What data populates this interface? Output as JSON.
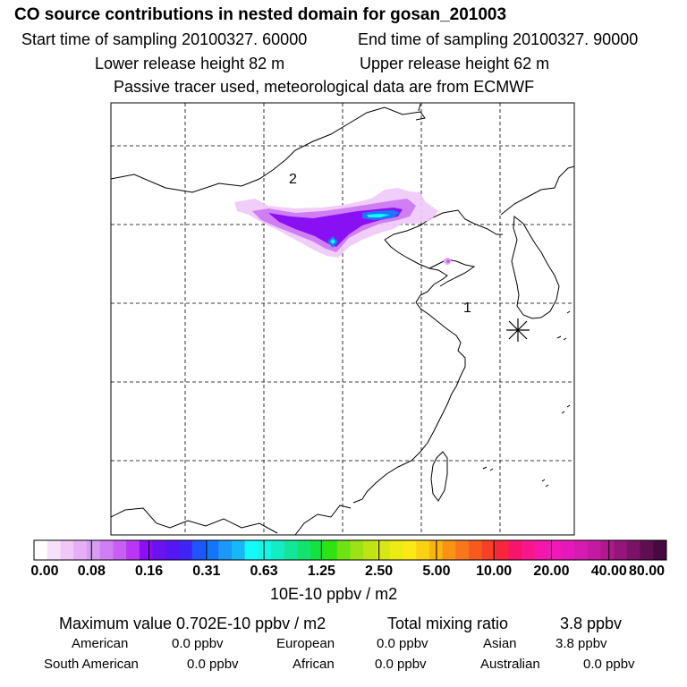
{
  "header": {
    "title": "CO  source contributions in nested domain for gosan_201003",
    "start_time": "Start time of sampling 20100327. 60000",
    "end_time": "End time of sampling 20100327. 90000",
    "lower_release": "Lower release height   82 m",
    "upper_release": "Upper release height   62 m",
    "tracer_note": "Passive tracer used, meteorological data are from ECMWF"
  },
  "chart_data": {
    "type": "heatmap",
    "map_labels": [
      "1",
      "2"
    ],
    "receptor_marker": "asterisk",
    "colorbar": {
      "ticks": [
        "0.00",
        "0.08",
        "0.16",
        "0.31",
        "0.63",
        "1.25",
        "2.50",
        "5.00",
        "10.00",
        "20.00",
        "40.00",
        "80.00"
      ],
      "unit_label": "10E-10 ppbv / m2",
      "colors": [
        "#ffffff",
        "#f6e1fb",
        "#f0c8f8",
        "#e6aef5",
        "#d79cf4",
        "#d07ef4",
        "#c85ff5",
        "#b937f4",
        "#8a10f4",
        "#6b12f0",
        "#5416f2",
        "#4023f7",
        "#1f55fa",
        "#1176fa",
        "#1b98f8",
        "#18b7f8",
        "#14fafa",
        "#13f5e5",
        "#14ecc3",
        "#14e699",
        "#12e36c",
        "#14e23f",
        "#2fe212",
        "#6fe214",
        "#9ce214",
        "#bee414",
        "#d8e614",
        "#ecec14",
        "#fae914",
        "#fad214",
        "#fab514",
        "#f89314",
        "#f8761e",
        "#f85a1e",
        "#f84028",
        "#f8263c",
        "#f8146a",
        "#f8168c",
        "#f616a8",
        "#f018b6",
        "#e618bb",
        "#d61bb0",
        "#c41aa2",
        "#b0198e",
        "#95167a",
        "#7a1266",
        "#5f0e52",
        "#450a40"
      ]
    },
    "plume_levels": [
      "light",
      "mid",
      "high",
      "peak"
    ]
  },
  "summary": {
    "max_value": "Maximum value  0.702E-10 ppbv / m2",
    "total_mixing": "Total mixing ratio",
    "total_value": "3.8 ppbv",
    "regions": [
      {
        "name": "American",
        "value": "0.0 ppbv"
      },
      {
        "name": "European",
        "value": "0.0 ppbv"
      },
      {
        "name": "Asian",
        "value": "3.8 ppbv"
      },
      {
        "name": "South American",
        "value": "0.0 ppbv"
      },
      {
        "name": "African",
        "value": "0.0 ppbv"
      },
      {
        "name": "Australian",
        "value": "0.0 ppbv"
      }
    ]
  }
}
